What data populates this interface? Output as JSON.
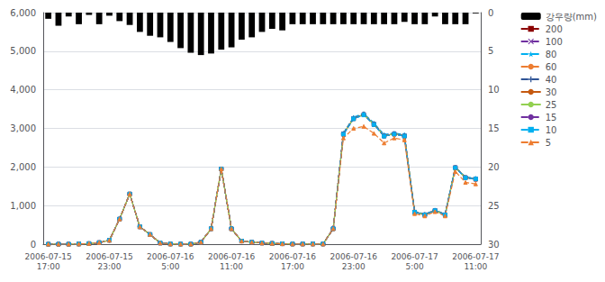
{
  "chart_data": {
    "type": "line",
    "categories": [
      "2006-07-15\n17:00",
      null,
      null,
      null,
      null,
      null,
      "2006-07-15\n23:00",
      null,
      null,
      null,
      null,
      null,
      "2006-07-16\n5:00",
      null,
      null,
      null,
      null,
      null,
      "2006-07-16\n11:00",
      null,
      null,
      null,
      null,
      null,
      "2006-07-16\n17:00",
      null,
      null,
      null,
      null,
      null,
      "2006-07-16\n23:00",
      null,
      null,
      null,
      null,
      null,
      "2006-07-17\n5:00",
      null,
      null,
      null,
      null,
      null,
      "2006-07-17\n11:00"
    ],
    "ylim": [
      0,
      6000
    ],
    "yticks": [
      0,
      1000,
      2000,
      3000,
      4000,
      5000,
      6000
    ],
    "y2lim": [
      0,
      30
    ],
    "y2ticks": [
      0,
      5,
      10,
      15,
      20,
      25,
      30
    ],
    "grid": true,
    "legend": "upper right",
    "series": [
      {
        "name": "강우량(mm)",
        "type": "bar",
        "axis": "y2",
        "color": "#000000",
        "values": [
          0.8,
          1.7,
          0.5,
          1.5,
          0.3,
          1.5,
          0.4,
          1.1,
          1.6,
          2.5,
          3.0,
          3.2,
          3.8,
          4.6,
          5.2,
          5.5,
          5.3,
          4.8,
          4.5,
          3.5,
          3.2,
          2.5,
          2.1,
          2.3,
          1.5,
          1.5,
          1.5,
          1.5,
          1.5,
          1.5,
          1.5,
          1.5,
          1.5,
          1.5,
          1.5,
          1.2,
          1.5,
          1.5,
          0.5,
          1.5,
          1.5,
          1.5,
          0.1
        ]
      },
      {
        "name": "200",
        "type": "line",
        "color": "#8b0000",
        "marker": "square",
        "line_style": "dashed",
        "values": [
          0,
          0,
          0,
          5,
          15,
          40,
          100,
          650,
          1300,
          450,
          250,
          30,
          5,
          2,
          2,
          50,
          400,
          1950,
          400,
          80,
          50,
          30,
          20,
          10,
          5,
          5,
          5,
          5,
          400,
          2850,
          3250,
          3350,
          3100,
          2800,
          2850,
          2800,
          830,
          760,
          870,
          760,
          1980,
          1720,
          1680
        ]
      },
      {
        "name": "100",
        "type": "line",
        "color": "#7030a0",
        "marker": "x",
        "line_style": "dashed",
        "values": [
          0,
          0,
          0,
          5,
          15,
          40,
          100,
          650,
          1300,
          450,
          250,
          30,
          5,
          2,
          2,
          50,
          400,
          1950,
          400,
          80,
          50,
          30,
          20,
          10,
          5,
          5,
          5,
          5,
          400,
          2870,
          3270,
          3370,
          3120,
          2820,
          2870,
          2820,
          840,
          770,
          880,
          770,
          1990,
          1730,
          1700
        ]
      },
      {
        "name": "80",
        "type": "line",
        "color": "#00b0f0",
        "marker": "star",
        "line_style": "dashed",
        "values": [
          0,
          0,
          0,
          5,
          15,
          40,
          100,
          650,
          1300,
          450,
          250,
          30,
          5,
          2,
          2,
          50,
          400,
          1950,
          400,
          80,
          50,
          30,
          20,
          10,
          5,
          5,
          5,
          5,
          400,
          2880,
          3290,
          3390,
          3140,
          2840,
          2880,
          2840,
          850,
          780,
          890,
          780,
          2000,
          1740,
          1710
        ]
      },
      {
        "name": "60",
        "type": "line",
        "color": "#ed7d31",
        "marker": "circle",
        "line_style": "dashed",
        "values": [
          0,
          0,
          0,
          5,
          15,
          40,
          100,
          650,
          1300,
          450,
          250,
          30,
          5,
          2,
          2,
          50,
          400,
          1950,
          400,
          80,
          50,
          30,
          20,
          10,
          5,
          5,
          5,
          5,
          400,
          2860,
          3260,
          3360,
          3110,
          2810,
          2860,
          2810,
          835,
          765,
          875,
          765,
          1985,
          1725,
          1695
        ]
      },
      {
        "name": "40",
        "type": "line",
        "color": "#2f5496",
        "marker": "plus",
        "line_style": "dashed",
        "values": [
          0,
          0,
          0,
          5,
          15,
          40,
          100,
          650,
          1300,
          450,
          250,
          30,
          5,
          2,
          2,
          50,
          400,
          1950,
          400,
          80,
          50,
          30,
          20,
          10,
          5,
          5,
          5,
          5,
          400,
          2865,
          3265,
          3365,
          3115,
          2815,
          2865,
          2815,
          837,
          767,
          877,
          767,
          1987,
          1727,
          1697
        ]
      },
      {
        "name": "30",
        "type": "line",
        "color": "#c55a11",
        "marker": "none",
        "line_style": "solid",
        "values": [
          0,
          0,
          0,
          5,
          15,
          40,
          100,
          650,
          1300,
          450,
          250,
          30,
          5,
          2,
          2,
          50,
          400,
          1950,
          400,
          80,
          50,
          30,
          20,
          10,
          5,
          5,
          5,
          5,
          400,
          2858,
          3258,
          3358,
          3108,
          2808,
          2858,
          2808,
          833,
          763,
          873,
          763,
          1983,
          1723,
          1693
        ]
      },
      {
        "name": "25",
        "type": "line",
        "color": "#92d050",
        "marker": "none",
        "line_style": "solid",
        "values": [
          0,
          0,
          0,
          5,
          15,
          40,
          100,
          650,
          1300,
          450,
          250,
          30,
          5,
          2,
          2,
          50,
          400,
          1950,
          400,
          80,
          50,
          30,
          20,
          10,
          5,
          5,
          5,
          5,
          400,
          2855,
          3255,
          3355,
          3105,
          2805,
          2855,
          2805,
          832,
          762,
          872,
          762,
          1982,
          1722,
          1692
        ]
      },
      {
        "name": "15",
        "type": "line",
        "color": "#7030a0",
        "marker": "circle",
        "line_style": "dashed",
        "values": [
          0,
          0,
          0,
          5,
          15,
          40,
          100,
          650,
          1300,
          450,
          250,
          30,
          5,
          2,
          2,
          50,
          400,
          1950,
          400,
          80,
          50,
          30,
          20,
          10,
          5,
          5,
          5,
          5,
          400,
          2852,
          3252,
          3352,
          3102,
          2802,
          2852,
          2802,
          831,
          761,
          871,
          761,
          1981,
          1721,
          1691
        ]
      },
      {
        "name": "10",
        "type": "line",
        "color": "#00b0f0",
        "marker": "square",
        "line_style": "dashed",
        "values": [
          0,
          0,
          0,
          5,
          15,
          40,
          100,
          650,
          1300,
          450,
          250,
          30,
          5,
          2,
          2,
          50,
          400,
          1950,
          400,
          80,
          50,
          30,
          20,
          10,
          5,
          5,
          5,
          5,
          400,
          2848,
          3248,
          3348,
          3098,
          2798,
          2848,
          2798,
          829,
          759,
          869,
          759,
          1979,
          1719,
          1689
        ]
      },
      {
        "name": "5",
        "type": "line",
        "color": "#ed7d31",
        "marker": "triangle",
        "line_style": "dashed",
        "values": [
          0,
          0,
          0,
          5,
          15,
          40,
          100,
          650,
          1300,
          450,
          250,
          30,
          5,
          2,
          2,
          50,
          400,
          1950,
          400,
          80,
          50,
          30,
          20,
          10,
          5,
          5,
          5,
          5,
          400,
          2750,
          3000,
          3050,
          2870,
          2620,
          2750,
          2700,
          790,
          730,
          840,
          730,
          1880,
          1600,
          1560
        ]
      }
    ]
  }
}
